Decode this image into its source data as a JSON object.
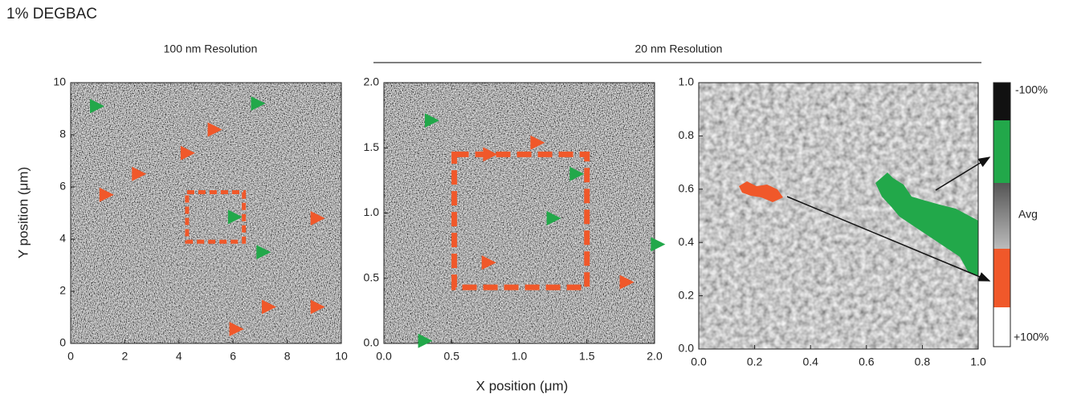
{
  "figure_title": "1% DEGBAC",
  "group_labels": [
    "100 nm Resolution",
    "20 nm Resolution"
  ],
  "y_label": "Y position (μm)",
  "x_label": "X position (μm)",
  "colorbar": {
    "labels": [
      "-100%",
      "Avg",
      "+100%"
    ]
  },
  "chart_data": [
    {
      "type": "scatter",
      "xlim": [
        0,
        10
      ],
      "ylim": [
        0,
        10
      ],
      "xticks": [
        0,
        2,
        4,
        6,
        8,
        10
      ],
      "yticks": [
        0,
        2,
        4,
        6,
        8,
        10
      ],
      "series": [
        {
          "color": "#22a84a",
          "x": [
            0.95,
            6.9,
            6.05,
            7.1
          ],
          "y": [
            9.1,
            9.2,
            4.85,
            3.5
          ]
        },
        {
          "color": "#f0582a",
          "x": [
            5.3,
            4.3,
            2.5,
            1.3,
            9.1,
            7.3,
            9.1,
            6.1
          ],
          "y": [
            8.2,
            7.3,
            6.5,
            5.7,
            4.8,
            1.4,
            1.4,
            0.55
          ]
        }
      ],
      "region": {
        "x": [
          4.3,
          6.4
        ],
        "y": [
          3.9,
          5.8
        ],
        "color": "#f0582a"
      }
    },
    {
      "type": "scatter",
      "xlim": [
        0,
        2
      ],
      "ylim": [
        0,
        2
      ],
      "xticks": [
        {
          "value": 0,
          "label": "0.0"
        },
        0.5,
        {
          "value": 1,
          "label": "1.0"
        },
        1.5,
        {
          "value": 2,
          "label": "2.0"
        }
      ],
      "yticks": [
        {
          "value": 0,
          "label": "0.0"
        },
        0.5,
        {
          "value": 1,
          "label": "1.0"
        },
        1.5,
        {
          "value": 2,
          "label": "2.0"
        }
      ],
      "series": [
        {
          "color": "#22a84a",
          "x": [
            0.35,
            1.42,
            1.25,
            2.02,
            0.3
          ],
          "y": [
            1.71,
            1.3,
            0.96,
            0.76,
            0.02
          ]
        },
        {
          "color": "#f0582a",
          "x": [
            1.13,
            0.78,
            0.77,
            1.79
          ],
          "y": [
            1.54,
            1.45,
            0.62,
            0.47
          ]
        }
      ],
      "region": {
        "x": [
          0.52,
          1.5
        ],
        "y": [
          0.43,
          1.45
        ],
        "color": "#f0582a"
      }
    },
    {
      "type": "scatter",
      "xlim": [
        0,
        1
      ],
      "ylim": [
        0,
        1
      ],
      "xticks": [
        {
          "value": 0,
          "label": "0.0"
        },
        0.2,
        0.4,
        0.6,
        0.8,
        {
          "value": 1,
          "label": "1.0"
        }
      ],
      "yticks": [
        {
          "value": 0,
          "label": "0.0"
        },
        0.2,
        0.4,
        0.6,
        0.8,
        {
          "value": 1,
          "label": "1.0"
        }
      ],
      "series": []
    }
  ]
}
